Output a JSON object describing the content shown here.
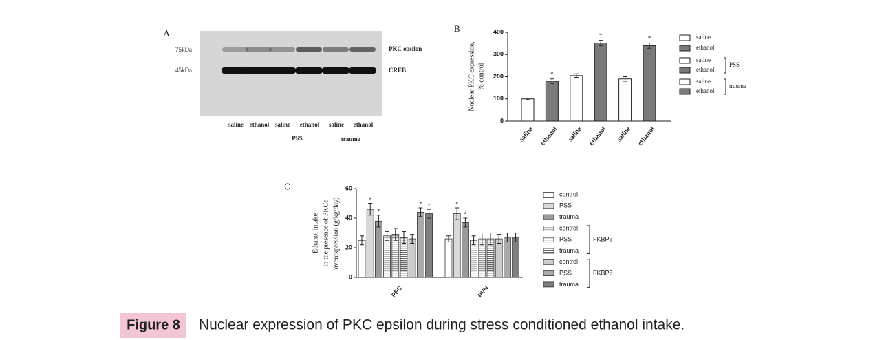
{
  "blot": {
    "panel_label": "A",
    "markers": [
      "75kDa",
      "45kDa"
    ],
    "bands": [
      "PKC epsilon",
      "CREB"
    ],
    "lanes": [
      "saline",
      "ethanol",
      "saline",
      "ethanol",
      "saline",
      "ethanol"
    ],
    "groups": [
      "PSS",
      "trauma"
    ]
  },
  "chart_data": [
    {
      "type": "bar",
      "panel_label": "B",
      "ylabel": [
        "Nuclear PKC expression,",
        "% control"
      ],
      "categories": [
        "saline",
        "ethanol",
        "saline",
        "ethanol",
        "saline",
        "ethanol"
      ],
      "values": [
        100,
        180,
        205,
        352,
        190,
        340
      ],
      "errors": [
        4,
        10,
        8,
        12,
        10,
        12
      ],
      "colors": [
        "#ffffff",
        "#7a7a7a",
        "#ffffff",
        "#7a7a7a",
        "#ffffff",
        "#7a7a7a"
      ],
      "significance_mark": "*",
      "significant": [
        false,
        true,
        false,
        true,
        false,
        true
      ],
      "ylim": [
        0,
        400
      ],
      "yticks": [
        0,
        100,
        200,
        300,
        400
      ],
      "legend": [
        {
          "name": "saline",
          "color": "#ffffff"
        },
        {
          "name": "ethanol",
          "color": "#7a7a7a"
        },
        {
          "name": "saline",
          "color": "#ffffff"
        },
        {
          "name": "ethanol",
          "color": "#7a7a7a"
        },
        {
          "name": "saline",
          "color": "#ffffff"
        },
        {
          "name": "ethanol",
          "color": "#7a7a7a"
        }
      ],
      "legend_groups": [
        "PSS",
        "trauma"
      ]
    },
    {
      "type": "grouped_bar",
      "panel_label": "C",
      "ylabel": [
        "Ethanol intake",
        "in the presence of PKCε",
        "overexpression (g/kg/day)"
      ],
      "categories": [
        "PFC",
        "PVN"
      ],
      "series": [
        {
          "name": "control",
          "color": "#ffffff",
          "hatch": false,
          "values": [
            25,
            26
          ],
          "errors": [
            3,
            2
          ],
          "significant": [
            false,
            false
          ]
        },
        {
          "name": "PSS",
          "color": "#d9d9d9",
          "hatch": false,
          "values": [
            46,
            43
          ],
          "errors": [
            4,
            4
          ],
          "significant": [
            true,
            true
          ]
        },
        {
          "name": "trauma",
          "color": "#9a9a9a",
          "hatch": false,
          "values": [
            38,
            37
          ],
          "errors": [
            4,
            3
          ],
          "significant": [
            true,
            true
          ]
        },
        {
          "name": "control",
          "color": "#bbbbbb",
          "hatch": true,
          "values": [
            28,
            25
          ],
          "errors": [
            3,
            3
          ],
          "significant": [
            false,
            false
          ]
        },
        {
          "name": "PSS",
          "color": "#999999",
          "hatch": true,
          "values": [
            29,
            26
          ],
          "errors": [
            4,
            4
          ],
          "significant": [
            false,
            false
          ]
        },
        {
          "name": "trauma",
          "color": "#666666",
          "hatch": true,
          "values": [
            27,
            26
          ],
          "errors": [
            4,
            4
          ],
          "significant": [
            false,
            false
          ]
        },
        {
          "name": "control",
          "color": "#cccccc",
          "hatch": false,
          "values": [
            26,
            26
          ],
          "errors": [
            3,
            3
          ],
          "significant": [
            false,
            false
          ]
        },
        {
          "name": "PSS",
          "color": "#aaaaaa",
          "hatch": false,
          "values": [
            44,
            27
          ],
          "errors": [
            3,
            3
          ],
          "significant": [
            true,
            false
          ]
        },
        {
          "name": "trauma",
          "color": "#808080",
          "hatch": false,
          "values": [
            43,
            27
          ],
          "errors": [
            3,
            3
          ],
          "significant": [
            true,
            false
          ]
        }
      ],
      "significance_mark": "*",
      "ylim": [
        0,
        60
      ],
      "yticks": [
        0,
        20,
        40,
        60
      ],
      "legend_groups": [
        "FKBP5",
        "FKBP5"
      ]
    }
  ],
  "caption": {
    "label": "Figure 8",
    "text": "Nuclear expression of PKC epsilon during stress conditioned ethanol intake."
  }
}
